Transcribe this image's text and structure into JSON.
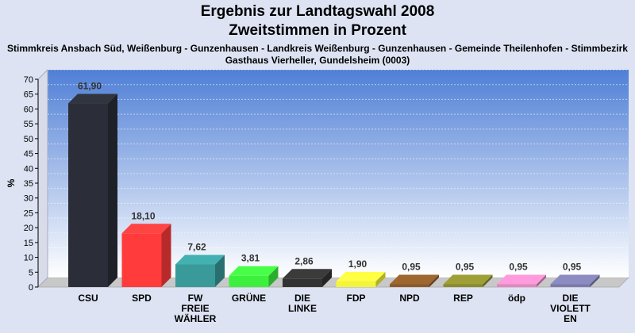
{
  "chart_data": {
    "type": "bar",
    "title": "Ergebnis zur Landtagswahl 2008",
    "subtitle_line1": "Zweitstimmen in Prozent",
    "subtitle_line2": "Stimmkreis Ansbach Süd, Weißenburg - Gunzenhausen - Landkreis Weißenburg - Gunzenhausen - Gemeinde Theilenhofen - Stimmbezirk",
    "subtitle_line3": "Gasthaus Vierheller, Gundelsheim (0003)",
    "ylabel": "%",
    "ylim": [
      0,
      70
    ],
    "yticks": [
      0,
      5,
      10,
      15,
      20,
      25,
      30,
      35,
      40,
      45,
      50,
      55,
      60,
      65,
      70
    ],
    "grid": true,
    "categories": [
      [
        "CSU"
      ],
      [
        "SPD"
      ],
      [
        "FW",
        "FREIE",
        "WÄHLER"
      ],
      [
        "GRÜNE"
      ],
      [
        "DIE",
        "LINKE"
      ],
      [
        "FDP"
      ],
      [
        "NPD"
      ],
      [
        "REP"
      ],
      [
        "ödp"
      ],
      [
        "DIE",
        "VIOLETT",
        "EN"
      ]
    ],
    "values": [
      61.9,
      18.1,
      7.62,
      3.81,
      2.86,
      1.9,
      0.95,
      0.95,
      0.95,
      0.95
    ],
    "value_labels": [
      "61,90",
      "18,10",
      "7,62",
      "3,81",
      "2,86",
      "1,90",
      "0,95",
      "0,95",
      "0,95",
      "0,95"
    ],
    "colors": [
      "#2b2e38",
      "#ff3b3b",
      "#3a9a9a",
      "#3ef03e",
      "#333333",
      "#f4f43a",
      "#8a5a2a",
      "#8a8a30",
      "#e087c0",
      "#7a7aaa"
    ]
  }
}
